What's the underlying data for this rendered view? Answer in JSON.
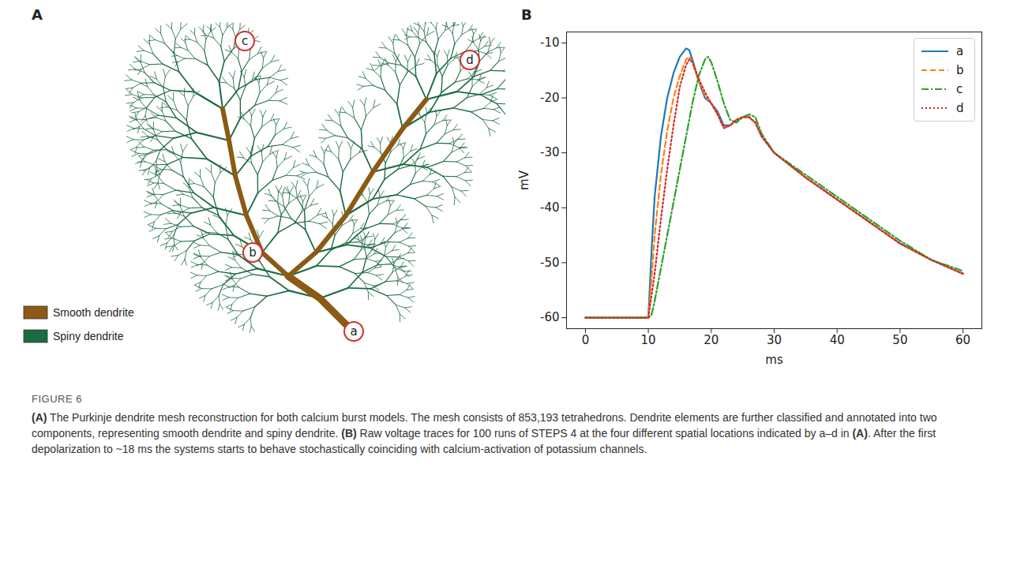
{
  "figure": {
    "label": "FIGURE 6",
    "caption": [
      {
        "text": "(A)",
        "bold": true
      },
      {
        "text": " The Purkinje dendrite mesh reconstruction for both calcium burst models. The mesh consists of 853,193 tetrahedrons. Dendrite elements are further classified and annotated into two components, representing smooth dendrite and spiny dendrite. "
      },
      {
        "text": "(B)",
        "bold": true
      },
      {
        "text": " Raw voltage traces for 100 runs of STEPS 4 at the four different spatial locations indicated by a–d in "
      },
      {
        "text": "(A)",
        "bold": true
      },
      {
        "text": ". After the first depolarization to ~18 ms the systems starts to behave stochastically coinciding with calcium-activation of potassium channels."
      }
    ]
  },
  "diagram": {
    "panel": "A",
    "legend": [
      {
        "label": "Smooth dendrite",
        "color": "#8b5a14"
      },
      {
        "label": "Spiny dendrite",
        "color": "#1d6b40"
      }
    ],
    "markers": [
      "a",
      "b",
      "c",
      "d"
    ]
  },
  "chart_data": {
    "panel": "B",
    "type": "line",
    "x_label": "ms",
    "y_label": "mV",
    "x": [
      0,
      10,
      10.5,
      11,
      12,
      13,
      14,
      15,
      16,
      16.5,
      17,
      18,
      19,
      19.5,
      20,
      21,
      22,
      23,
      24,
      25,
      26,
      27,
      28,
      30,
      35,
      40,
      45,
      50,
      55,
      60
    ],
    "series": [
      {
        "name": "a",
        "color": "#1f77b4",
        "line_style": "solid",
        "values": [
          -60,
          -60,
          -48,
          -38,
          -27,
          -20,
          -15.5,
          -12.5,
          -11,
          -11.3,
          -13,
          -17,
          -20,
          -20.5,
          -21,
          -22.5,
          -25,
          -25,
          -24,
          -23.5,
          -23.5,
          -24.5,
          -27,
          -30,
          -34.5,
          -38.5,
          -42.5,
          -46.5,
          -49.5,
          -52
        ]
      },
      {
        "name": "b",
        "color": "#ff7f0e",
        "line_style": "dashed",
        "values": [
          -60,
          -60,
          -53,
          -45,
          -34,
          -26,
          -20,
          -16,
          -13,
          -12.5,
          -13.5,
          -17,
          -19.5,
          -20.3,
          -21,
          -23,
          -25.5,
          -25,
          -24,
          -23.5,
          -23.5,
          -24.5,
          -27,
          -30,
          -34.5,
          -38.5,
          -42.5,
          -46.5,
          -49.5,
          -52
        ]
      },
      {
        "name": "c",
        "color": "#2ca02c",
        "line_style": "dashdot",
        "values": [
          -60,
          -60,
          -59.5,
          -57,
          -51,
          -45,
          -39,
          -33,
          -27,
          -24,
          -21,
          -16,
          -13,
          -12.5,
          -13.5,
          -17,
          -21,
          -24,
          -24.5,
          -23.5,
          -23,
          -23.5,
          -26.5,
          -30,
          -34,
          -38,
          -42,
          -46,
          -49.5,
          -51.5
        ]
      },
      {
        "name": "d",
        "color": "#d62728",
        "line_style": "dotted",
        "values": [
          -60,
          -60,
          -56,
          -52,
          -42,
          -33,
          -25,
          -18,
          -14,
          -13,
          -13.5,
          -16.5,
          -19,
          -20,
          -21,
          -23,
          -25.5,
          -25,
          -24,
          -23.5,
          -23.5,
          -24.5,
          -27,
          -30,
          -34.5,
          -38.5,
          -42.5,
          -46.5,
          -49.5,
          -52
        ]
      }
    ],
    "xlim": [
      -3,
      63
    ],
    "xticks": [
      0,
      10,
      20,
      30,
      40,
      50,
      60
    ],
    "ylim": [
      -62,
      -8
    ],
    "yticks": [
      -60,
      -50,
      -40,
      -30,
      -20,
      -10
    ],
    "grid": false,
    "legend": "upper right"
  }
}
